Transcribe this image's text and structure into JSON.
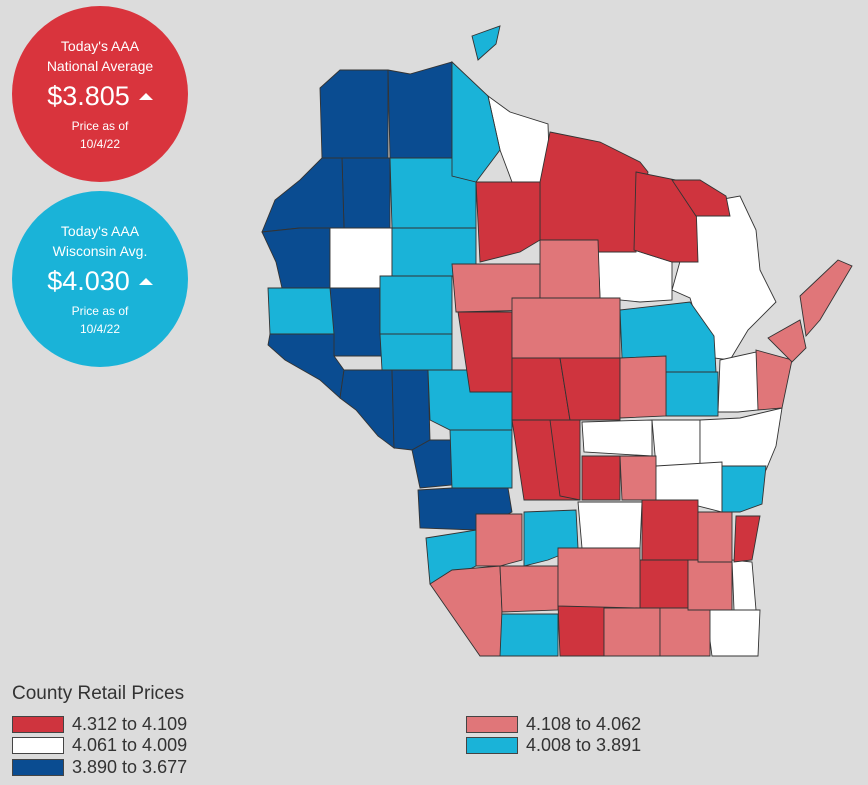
{
  "national": {
    "line1": "Today's AAA",
    "line2": "National Average",
    "price": "$3.805",
    "asof_label": "Price as of",
    "asof_date": "10/4/22",
    "color": "#d9343d"
  },
  "wisconsin": {
    "line1": "Today's AAA",
    "line2": "Wisconsin Avg.",
    "price": "$4.030",
    "asof_label": "Price as of",
    "asof_date": "10/4/22",
    "color": "#1ab3d8"
  },
  "legend": {
    "title": "County Retail Prices",
    "items": [
      {
        "range": "4.312 to 4.109",
        "color": "#cf343e"
      },
      {
        "range": "4.108 to 4.062",
        "color": "#e07679"
      },
      {
        "range": "4.061 to 4.009",
        "color": "#ffffff"
      },
      {
        "range": "4.008 to 3.891",
        "color": "#1ab3d8"
      },
      {
        "range": "3.890 to 3.677",
        "color": "#0a4c91"
      }
    ]
  },
  "colors": {
    "bin1": "#cf343e",
    "bin2": "#e07679",
    "bin3": "#ffffff",
    "bin4": "#1ab3d8",
    "bin5": "#0a4c91",
    "border": "#333333"
  }
}
